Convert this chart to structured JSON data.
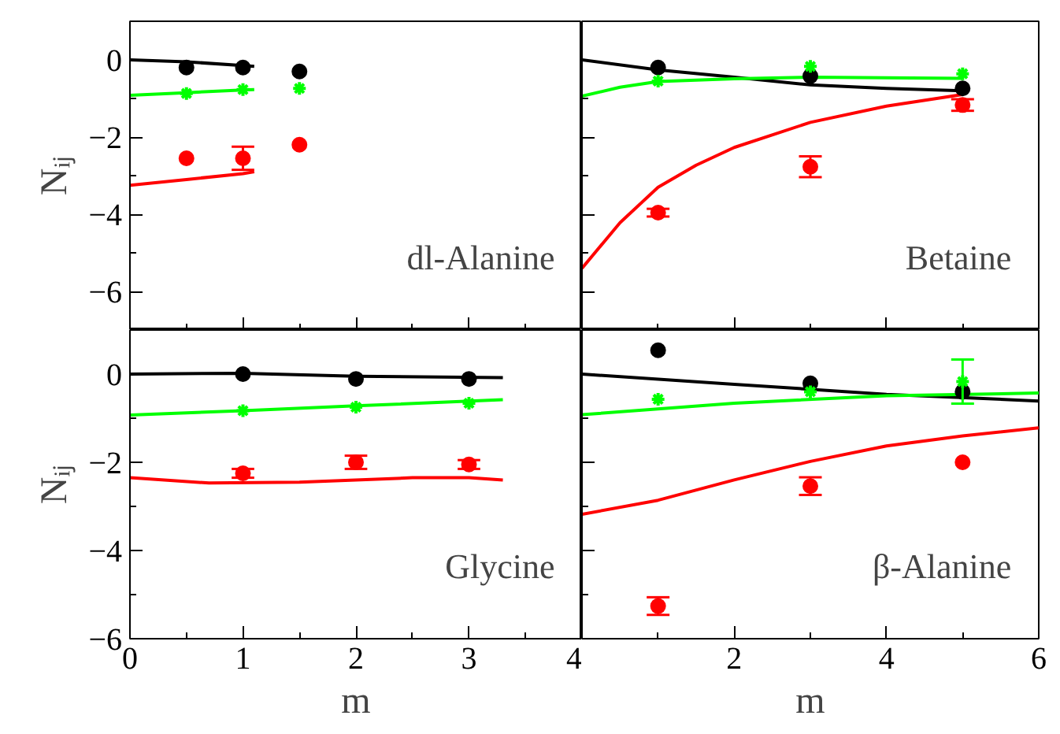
{
  "chart_data": [
    {
      "type": "scatter",
      "ylabel": "Nᵢⱼ",
      "xlim": [
        0,
        4
      ],
      "ylim": [
        -7,
        1
      ],
      "xticks": [
        0,
        1,
        2,
        3,
        4
      ],
      "yticks": [
        0,
        -2,
        -4,
        -6
      ],
      "tick_labels": "y",
      "grid": false,
      "annotations": [
        "dl-Alanine"
      ],
      "series": [
        {
          "type": "line",
          "marker": "none",
          "color": "#000000",
          "x": [
            0,
            0.5,
            1,
            1.1
          ],
          "values": [
            0,
            -0.05,
            -0.15,
            -0.17
          ]
        },
        {
          "type": "line",
          "marker": "none",
          "color": "#00ff00",
          "x": [
            0,
            0.5,
            1,
            1.1
          ],
          "values": [
            -0.92,
            -0.85,
            -0.78,
            -0.77
          ]
        },
        {
          "type": "line",
          "marker": "none",
          "color": "#ff0000",
          "x": [
            0,
            0.5,
            1,
            1.1
          ],
          "values": [
            -3.25,
            -3.1,
            -2.95,
            -2.9
          ]
        },
        {
          "marker": "circle",
          "color": "#000000",
          "x": [
            0.5,
            1,
            1.5
          ],
          "values": [
            -0.2,
            -0.2,
            -0.3
          ]
        },
        {
          "marker": "cross",
          "color": "#00ff00",
          "x": [
            0.5,
            1,
            1.5
          ],
          "values": [
            -0.87,
            -0.77,
            -0.74
          ]
        },
        {
          "marker": "circle",
          "color": "#ff0000",
          "x": [
            0.5,
            1,
            1.5
          ],
          "values": [
            -2.55,
            -2.55,
            -2.2
          ],
          "errors": [
            null,
            0.3,
            null
          ]
        }
      ]
    },
    {
      "type": "scatter",
      "xlim": [
        0,
        6
      ],
      "ylim": [
        -7,
        1
      ],
      "xticks": [
        {
          "value": 0,
          "label": null
        },
        2,
        4,
        6
      ],
      "yticks": [
        {
          "value": 0,
          "label": null
        },
        {
          "value": -2,
          "label": null
        },
        {
          "value": -4,
          "label": null
        },
        {
          "value": -6,
          "label": null
        }
      ],
      "tick_labels": false,
      "grid": false,
      "annotations": [
        "Betaine"
      ],
      "series": [
        {
          "type": "line",
          "marker": "none",
          "color": "#000000",
          "x": [
            0,
            1,
            2,
            3,
            4,
            5
          ],
          "values": [
            0,
            -0.26,
            -0.45,
            -0.65,
            -0.74,
            -0.8
          ]
        },
        {
          "type": "line",
          "marker": "none",
          "color": "#00ff00",
          "x": [
            0,
            0.5,
            1,
            2,
            3,
            5
          ],
          "values": [
            -0.94,
            -0.71,
            -0.56,
            -0.49,
            -0.45,
            -0.48
          ]
        },
        {
          "type": "line",
          "marker": "none",
          "color": "#ff0000",
          "x": [
            0,
            0.5,
            1,
            1.5,
            2,
            3,
            4,
            5
          ],
          "values": [
            -5.4,
            -4.22,
            -3.3,
            -2.73,
            -2.27,
            -1.62,
            -1.2,
            -0.9
          ]
        },
        {
          "marker": "circle",
          "color": "#000000",
          "x": [
            1,
            3,
            5
          ],
          "values": [
            -0.2,
            -0.42,
            -0.74
          ]
        },
        {
          "marker": "cross",
          "color": "#00ff00",
          "x": [
            1,
            3,
            5
          ],
          "values": [
            -0.55,
            -0.17,
            -0.36
          ]
        },
        {
          "marker": "circle",
          "color": "#ff0000",
          "x": [
            1,
            3,
            5
          ],
          "values": [
            -3.96,
            -2.77,
            -1.17
          ],
          "errors": [
            0.1,
            0.27,
            0.15
          ]
        }
      ]
    },
    {
      "type": "scatter",
      "xlabel": "m",
      "ylabel": "Nᵢⱼ",
      "xlim": [
        0,
        4
      ],
      "ylim": [
        -6,
        1
      ],
      "xticks": [
        0,
        1,
        2,
        3,
        4
      ],
      "yticks": [
        0,
        -2,
        -4,
        -6
      ],
      "grid": false,
      "annotations": [
        "Glycine"
      ],
      "series": [
        {
          "type": "line",
          "marker": "none",
          "color": "#000000",
          "x": [
            0,
            1,
            2,
            3.3
          ],
          "values": [
            0,
            0.02,
            -0.05,
            -0.08
          ]
        },
        {
          "type": "line",
          "marker": "none",
          "color": "#00ff00",
          "x": [
            0,
            1,
            2,
            3.3
          ],
          "values": [
            -0.93,
            -0.83,
            -0.72,
            -0.58
          ]
        },
        {
          "type": "line",
          "marker": "none",
          "color": "#ff0000",
          "x": [
            0,
            0.7,
            1.5,
            2.5,
            3,
            3.3
          ],
          "values": [
            -2.35,
            -2.47,
            -2.45,
            -2.35,
            -2.35,
            -2.4
          ]
        },
        {
          "marker": "circle",
          "color": "#000000",
          "x": [
            1,
            2,
            3
          ],
          "values": [
            0,
            -0.11,
            -0.11
          ]
        },
        {
          "marker": "cross",
          "color": "#00ff00",
          "x": [
            1,
            2,
            3
          ],
          "values": [
            -0.83,
            -0.75,
            -0.66
          ]
        },
        {
          "marker": "circle",
          "color": "#ff0000",
          "x": [
            1,
            2,
            3
          ],
          "values": [
            -2.25,
            -2.0,
            -2.05
          ],
          "errors": [
            0.1,
            0.15,
            0.1
          ]
        }
      ]
    },
    {
      "type": "scatter",
      "xlabel": "m",
      "xlim": [
        0,
        6
      ],
      "ylim": [
        -6,
        1
      ],
      "xticks": [
        {
          "value": 0,
          "label": null
        },
        2,
        4,
        6
      ],
      "yticks": [
        {
          "value": 0,
          "label": null
        },
        {
          "value": -2,
          "label": null
        },
        {
          "value": -4,
          "label": null
        },
        {
          "value": -6,
          "label": null
        }
      ],
      "tick_labels": "x",
      "grid": false,
      "annotations": [
        "β-Alanine"
      ],
      "series": [
        {
          "type": "line",
          "marker": "none",
          "color": "#000000",
          "x": [
            0,
            2,
            4,
            6
          ],
          "values": [
            0,
            -0.23,
            -0.46,
            -0.61
          ]
        },
        {
          "type": "line",
          "marker": "none",
          "color": "#00ff00",
          "x": [
            0,
            2,
            4,
            6
          ],
          "values": [
            -0.92,
            -0.66,
            -0.49,
            -0.43
          ]
        },
        {
          "type": "line",
          "marker": "none",
          "color": "#ff0000",
          "x": [
            0,
            1,
            2,
            3,
            4,
            5,
            6
          ],
          "values": [
            -3.18,
            -2.86,
            -2.4,
            -1.98,
            -1.63,
            -1.4,
            -1.22
          ]
        },
        {
          "marker": "circle",
          "color": "#000000",
          "x": [
            1,
            3,
            5
          ],
          "values": [
            0.54,
            -0.21,
            -0.4
          ]
        },
        {
          "marker": "cross",
          "color": "#00ff00",
          "x": [
            1,
            3,
            5
          ],
          "values": [
            -0.57,
            -0.4,
            -0.17
          ],
          "errors": [
            null,
            null,
            0.5
          ]
        },
        {
          "marker": "circle",
          "color": "#ff0000",
          "x": [
            1,
            3,
            5
          ],
          "values": [
            -5.26,
            -2.54,
            -2.0
          ],
          "errors": [
            0.2,
            0.2,
            null
          ]
        }
      ]
    }
  ]
}
